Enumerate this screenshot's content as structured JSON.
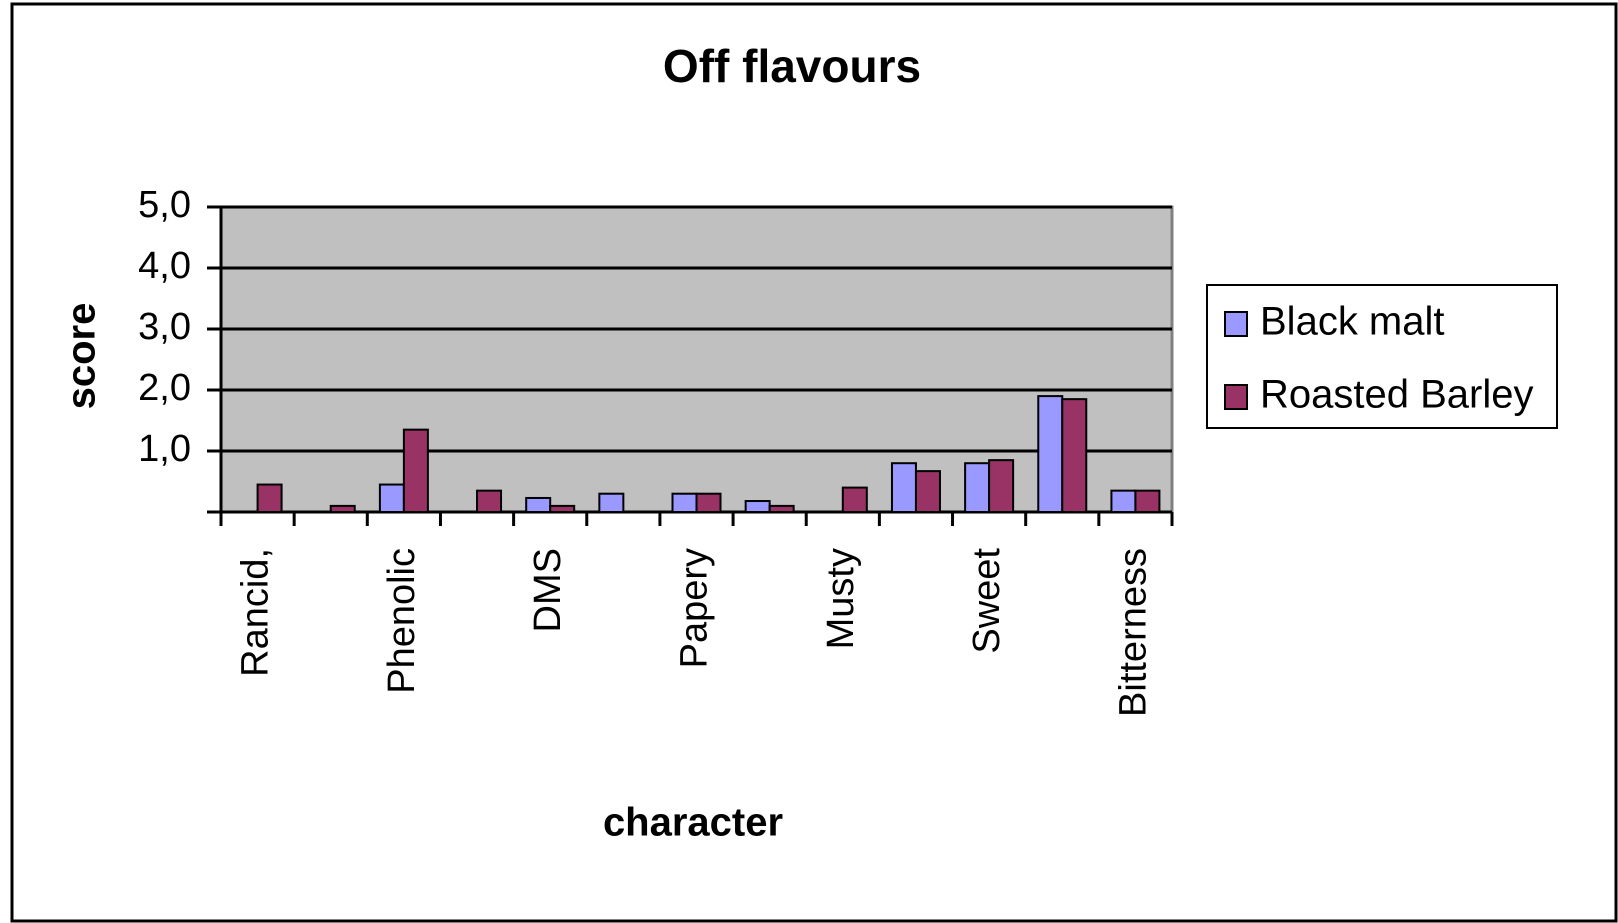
{
  "chart_data": {
    "type": "bar",
    "title": "Off flavours",
    "x_label": "character",
    "y_label": "score",
    "categories": [
      "Rancid,",
      null,
      "Phenolic",
      null,
      "DMS",
      null,
      "Papery",
      null,
      "Musty",
      null,
      "Sweet",
      null,
      "Bitterness"
    ],
    "series": [
      {
        "name": "Black malt",
        "color": "#9999ff",
        "values": [
          0,
          0,
          0.45,
          0,
          0.23,
          0.3,
          0.3,
          0.18,
          0,
          0.8,
          0.8,
          1.9,
          0.35
        ]
      },
      {
        "name": "Roasted Barley",
        "color": "#993366",
        "values": [
          0.45,
          0.1,
          1.35,
          0.35,
          0.1,
          0,
          0.3,
          0.1,
          0.4,
          0.67,
          0.85,
          1.85,
          0.35
        ]
      }
    ],
    "ylim": [
      0,
      5
    ],
    "yticks": [
      {
        "value": 1,
        "label": "1,0"
      },
      {
        "value": 2,
        "label": "2,0"
      },
      {
        "value": 3,
        "label": "3,0"
      },
      {
        "value": 4,
        "label": "4,0"
      },
      {
        "value": 5,
        "label": "5,0"
      }
    ],
    "grid": true,
    "legend": "right"
  }
}
